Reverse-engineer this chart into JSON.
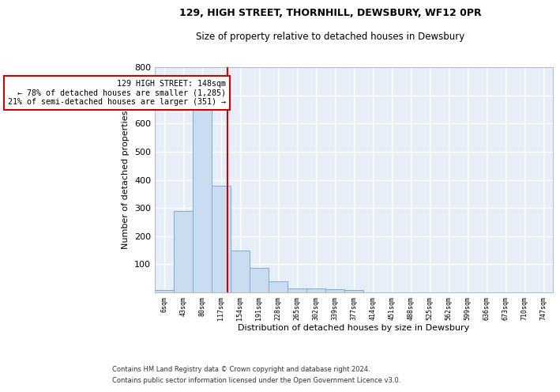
{
  "title": "129, HIGH STREET, THORNHILL, DEWSBURY, WF12 0PR",
  "subtitle": "Size of property relative to detached houses in Dewsbury",
  "xlabel": "Distribution of detached houses by size in Dewsbury",
  "ylabel": "Number of detached properties",
  "footnote1": "Contains HM Land Registry data © Crown copyright and database right 2024.",
  "footnote2": "Contains public sector information licensed under the Open Government Licence v3.0.",
  "bar_edges": [
    6,
    43,
    80,
    117,
    154,
    191,
    228,
    265,
    302,
    339,
    377,
    414,
    451,
    488,
    525,
    562,
    599,
    636,
    673,
    710,
    747
  ],
  "bar_values": [
    8,
    290,
    665,
    380,
    150,
    88,
    38,
    15,
    14,
    10,
    8,
    0,
    0,
    0,
    0,
    0,
    0,
    0,
    0,
    0
  ],
  "bar_color": "#c9dcf0",
  "bar_edge_color": "#7aadd4",
  "red_line_x": 148,
  "annotation_text": "129 HIGH STREET: 148sqm\n← 78% of detached houses are smaller (1,285)\n21% of semi-detached houses are larger (351) →",
  "annotation_box_color": "#ffffff",
  "annotation_box_edge": "#cc0000",
  "red_line_color": "#cc0000",
  "bg_color": "#e8eef8",
  "ylim": [
    0,
    800
  ],
  "yticks": [
    100,
    200,
    300,
    400,
    500,
    600,
    700,
    800
  ],
  "grid_color": "#ffffff",
  "tick_labels": [
    "6sqm",
    "43sqm",
    "80sqm",
    "117sqm",
    "154sqm",
    "191sqm",
    "228sqm",
    "265sqm",
    "302sqm",
    "339sqm",
    "377sqm",
    "414sqm",
    "451sqm",
    "488sqm",
    "525sqm",
    "562sqm",
    "599sqm",
    "636sqm",
    "673sqm",
    "710sqm",
    "747sqm"
  ]
}
